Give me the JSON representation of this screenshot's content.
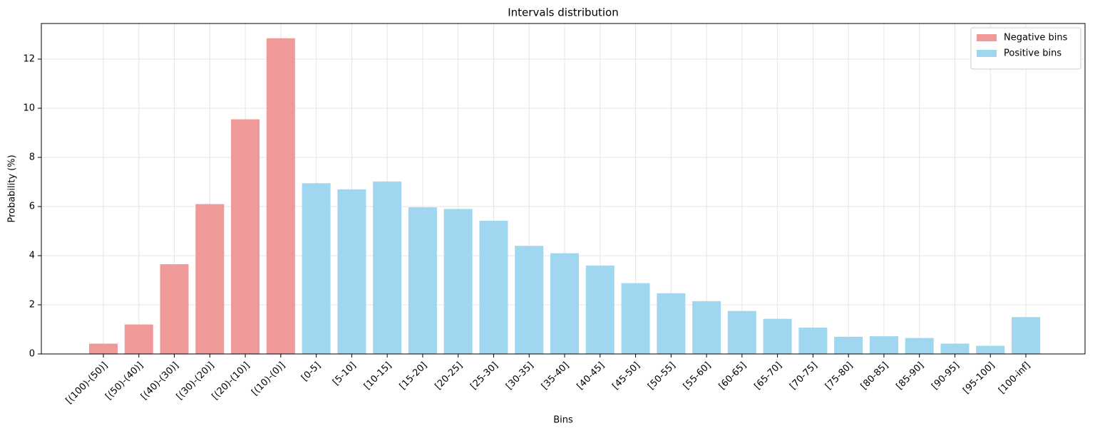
{
  "chart_data": {
    "type": "bar",
    "title": "Intervals distribution",
    "x_label": "Bins",
    "y_label": "Probability (%)",
    "categories": [
      "[(100)-(50)]",
      "[(50)-(40)]",
      "[(40)-(30)]",
      "[(30)-(20)]",
      "[(20)-(10)]",
      "[(10)-(0)]",
      "[0-5]",
      "[5-10]",
      "[10-15]",
      "[15-20]",
      "[20-25]",
      "[25-30]",
      "[30-35]",
      "[35-40]",
      "[40-45]",
      "[45-50]",
      "[50-55]",
      "[55-60]",
      "[60-65]",
      "[65-70]",
      "[70-75]",
      "[75-80]",
      "[80-85]",
      "[85-90]",
      "[90-95]",
      "[95-100]",
      "[100-inf]"
    ],
    "series": [
      {
        "name": "Negative bins",
        "color": "#f09999",
        "values": [
          0.42,
          1.2,
          3.65,
          6.1,
          9.55,
          12.85,
          null,
          null,
          null,
          null,
          null,
          null,
          null,
          null,
          null,
          null,
          null,
          null,
          null,
          null,
          null,
          null,
          null,
          null,
          null,
          null,
          null
        ]
      },
      {
        "name": "Positive bins",
        "color": "#a0d6ef",
        "values": [
          null,
          null,
          null,
          null,
          null,
          null,
          6.95,
          6.7,
          7.02,
          5.97,
          5.9,
          5.42,
          4.4,
          4.1,
          3.6,
          2.88,
          2.47,
          2.15,
          1.75,
          1.43,
          1.07,
          0.7,
          0.72,
          0.65,
          0.42,
          0.33,
          1.5
        ]
      }
    ],
    "ylim": [
      0,
      13.45
    ],
    "yticks": [
      0,
      2,
      4,
      6,
      8,
      10,
      12
    ],
    "grid": true,
    "legend": "upper right"
  }
}
